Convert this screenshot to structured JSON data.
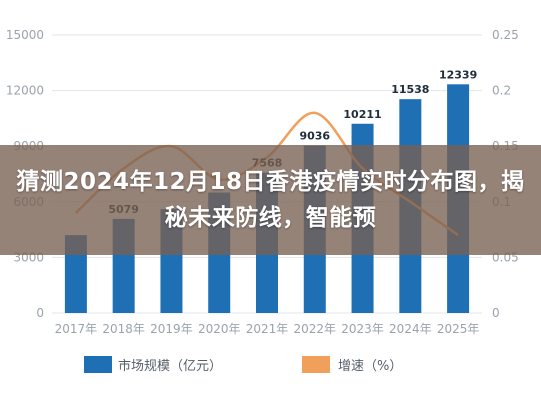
{
  "overlay": {
    "title": "猜测2024年12月18日香港疫情实时分布图，揭秘未来防线，智能预"
  },
  "chart_data": {
    "type": "bar",
    "categories": [
      "2017年",
      "2018年",
      "2019年",
      "2020年",
      "2021年",
      "2022年",
      "2023年",
      "2024年",
      "2025年"
    ],
    "series": [
      {
        "name": "市场规模（亿元）",
        "type": "bar",
        "axis": "left",
        "values": [
          4200,
          5079,
          5600,
          6500,
          7568,
          9036,
          10211,
          11538,
          12339
        ],
        "labels": [
          "",
          "5079",
          "",
          "",
          "7568",
          "9036",
          "10211",
          "11538",
          "12339"
        ]
      },
      {
        "name": "增速（%）",
        "type": "line",
        "axis": "right",
        "values": [
          0.09,
          0.13,
          0.15,
          0.12,
          0.14,
          0.18,
          0.13,
          0.1,
          0.07
        ]
      }
    ],
    "y_left": {
      "ticks": [
        "0",
        "3000",
        "6000",
        "9000",
        "12000",
        "15000"
      ],
      "range": [
        0,
        15000
      ]
    },
    "y_right": {
      "ticks": [
        "0",
        "0.05",
        "0.1",
        "0.15",
        "0.2",
        "0.25"
      ],
      "range": [
        0,
        0.25
      ]
    },
    "legend_position": "bottom",
    "colors": {
      "bar": "#1f6fb5",
      "line": "#f0a05a",
      "grid": "#e3e6ea",
      "axis_text": "#9aa3ad"
    }
  }
}
